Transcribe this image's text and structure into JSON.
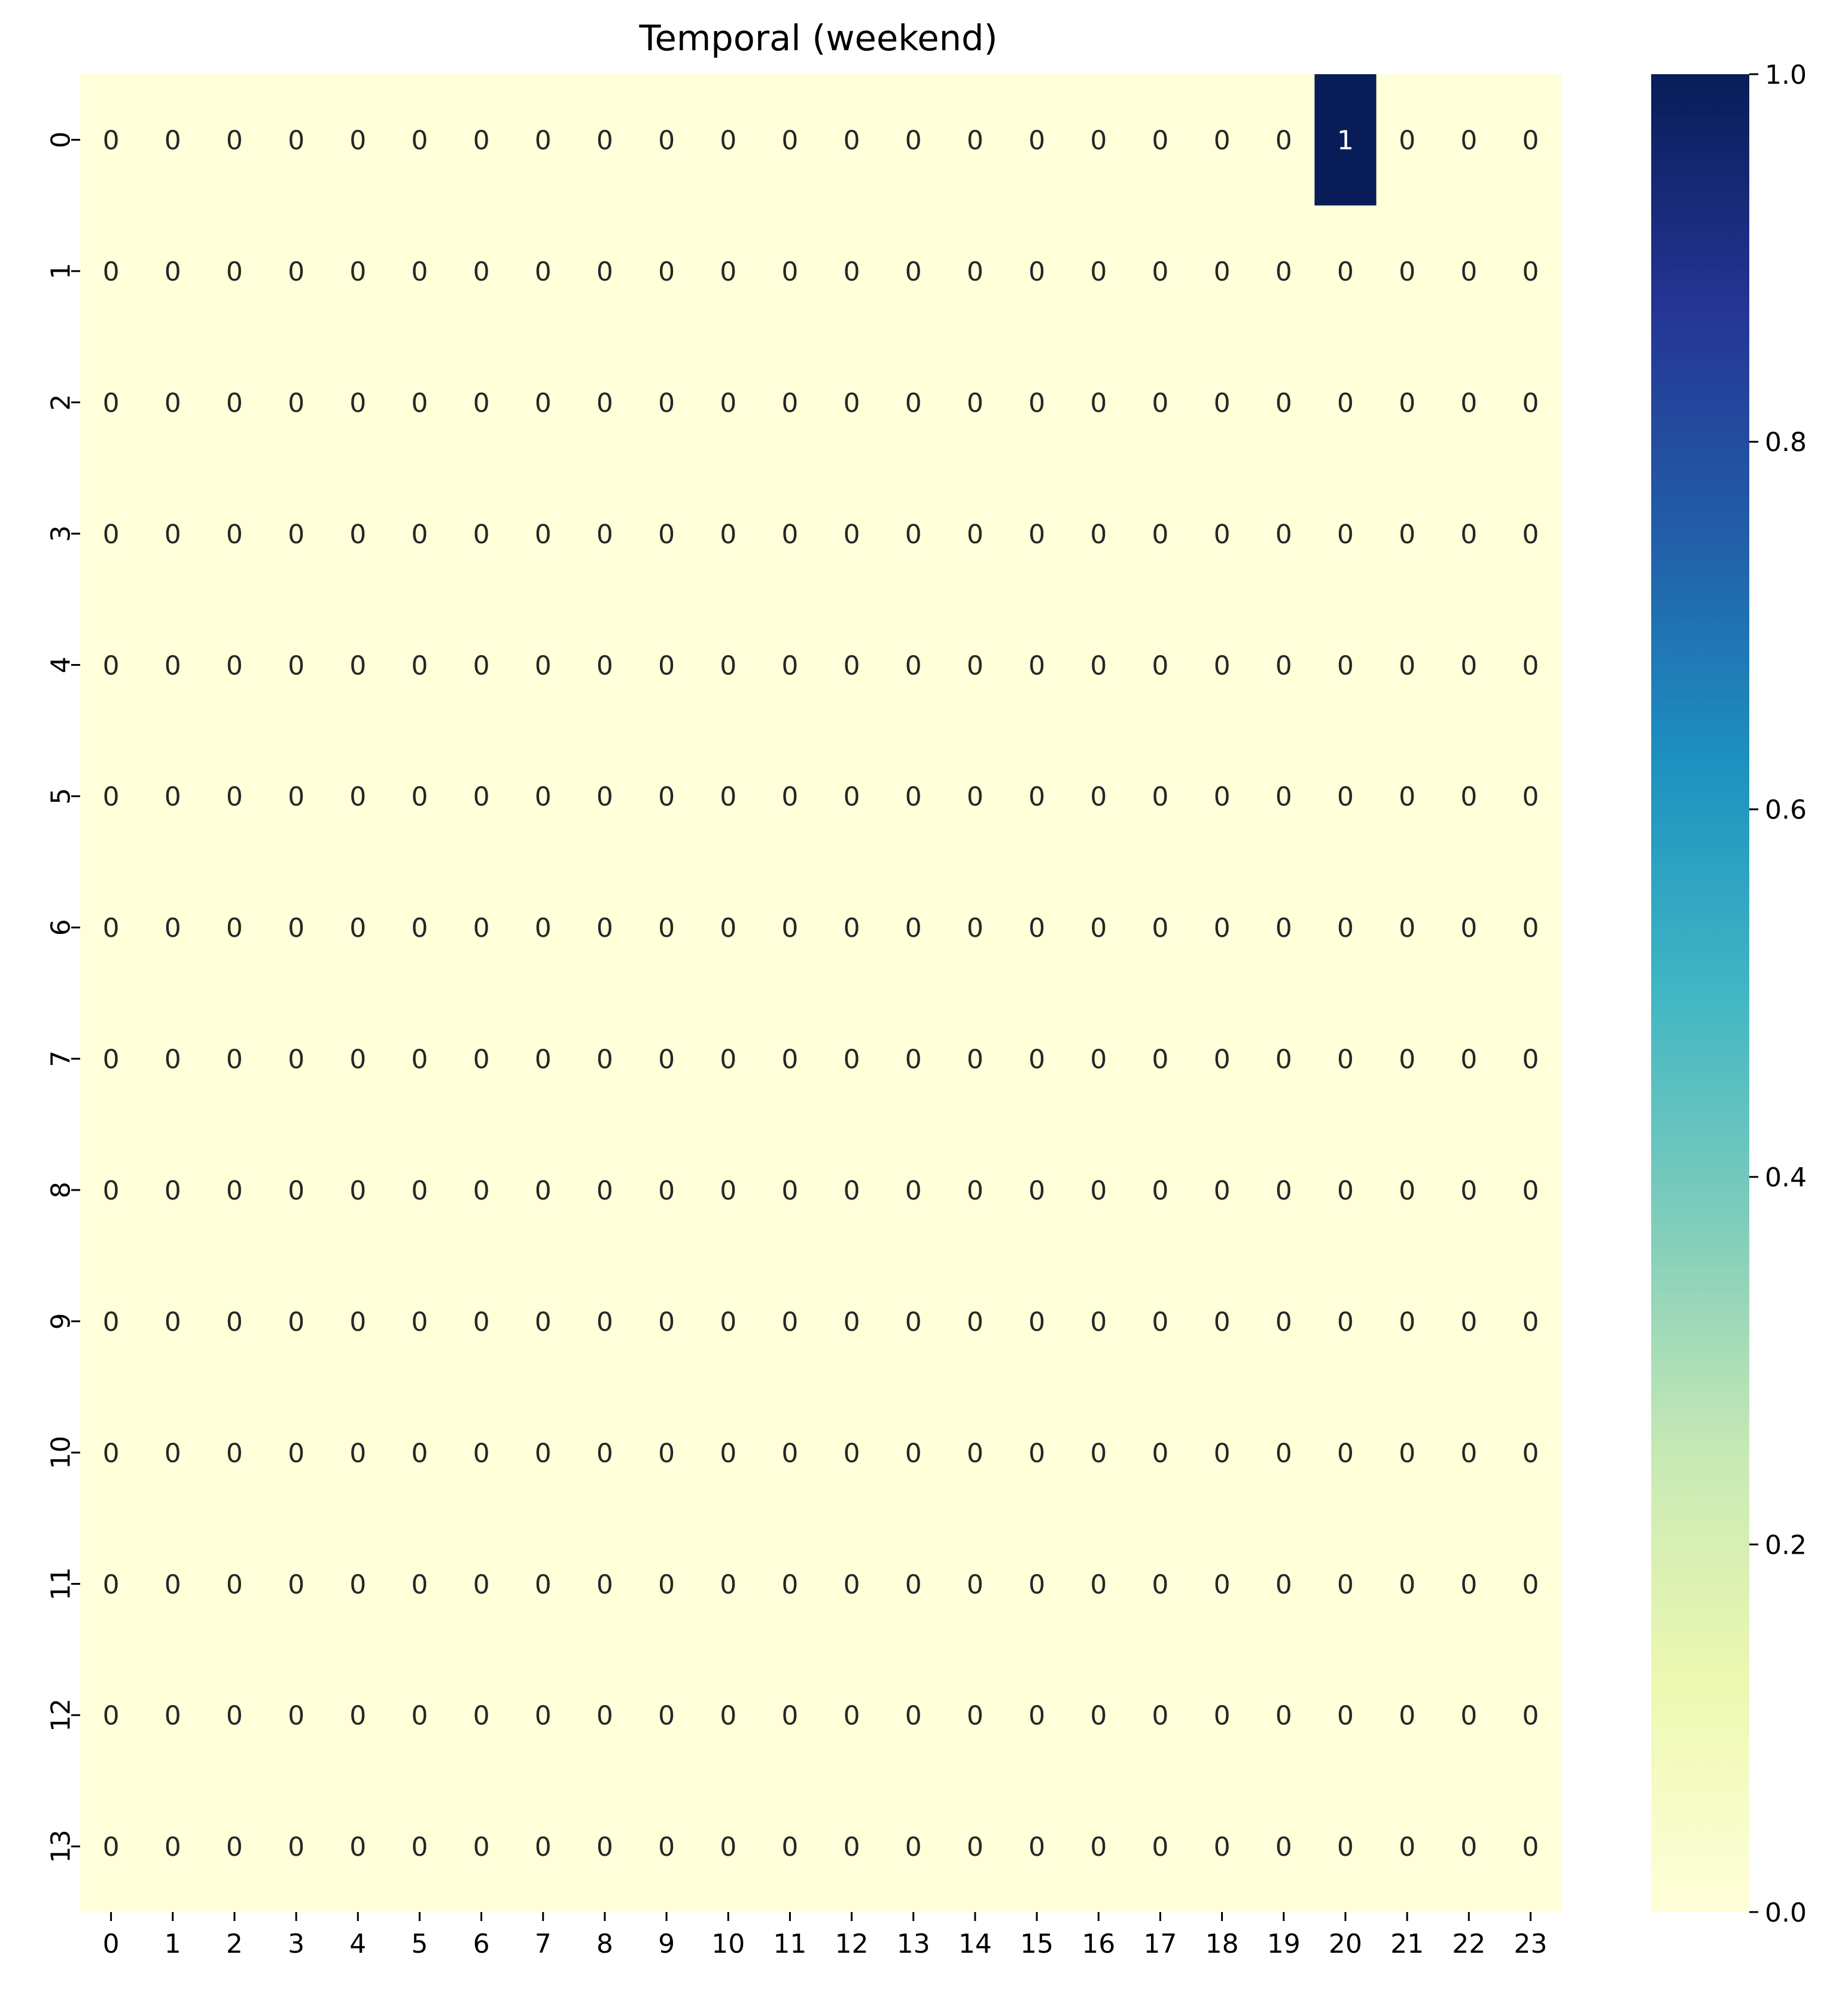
{
  "chart_data": {
    "type": "heatmap",
    "title": "Temporal (weekend)",
    "xlabel": "",
    "ylabel": "",
    "x_categories": [
      "0",
      "1",
      "2",
      "3",
      "4",
      "5",
      "6",
      "7",
      "8",
      "9",
      "10",
      "11",
      "12",
      "13",
      "14",
      "15",
      "16",
      "17",
      "18",
      "19",
      "20",
      "21",
      "22",
      "23"
    ],
    "y_categories": [
      "0",
      "1",
      "2",
      "3",
      "4",
      "5",
      "6",
      "7",
      "8",
      "9",
      "10",
      "11",
      "12",
      "13"
    ],
    "values": [
      [
        0,
        0,
        0,
        0,
        0,
        0,
        0,
        0,
        0,
        0,
        0,
        0,
        0,
        0,
        0,
        0,
        0,
        0,
        0,
        0,
        1,
        0,
        0,
        0
      ],
      [
        0,
        0,
        0,
        0,
        0,
        0,
        0,
        0,
        0,
        0,
        0,
        0,
        0,
        0,
        0,
        0,
        0,
        0,
        0,
        0,
        0,
        0,
        0,
        0
      ],
      [
        0,
        0,
        0,
        0,
        0,
        0,
        0,
        0,
        0,
        0,
        0,
        0,
        0,
        0,
        0,
        0,
        0,
        0,
        0,
        0,
        0,
        0,
        0,
        0
      ],
      [
        0,
        0,
        0,
        0,
        0,
        0,
        0,
        0,
        0,
        0,
        0,
        0,
        0,
        0,
        0,
        0,
        0,
        0,
        0,
        0,
        0,
        0,
        0,
        0
      ],
      [
        0,
        0,
        0,
        0,
        0,
        0,
        0,
        0,
        0,
        0,
        0,
        0,
        0,
        0,
        0,
        0,
        0,
        0,
        0,
        0,
        0,
        0,
        0,
        0
      ],
      [
        0,
        0,
        0,
        0,
        0,
        0,
        0,
        0,
        0,
        0,
        0,
        0,
        0,
        0,
        0,
        0,
        0,
        0,
        0,
        0,
        0,
        0,
        0,
        0
      ],
      [
        0,
        0,
        0,
        0,
        0,
        0,
        0,
        0,
        0,
        0,
        0,
        0,
        0,
        0,
        0,
        0,
        0,
        0,
        0,
        0,
        0,
        0,
        0,
        0
      ],
      [
        0,
        0,
        0,
        0,
        0,
        0,
        0,
        0,
        0,
        0,
        0,
        0,
        0,
        0,
        0,
        0,
        0,
        0,
        0,
        0,
        0,
        0,
        0,
        0
      ],
      [
        0,
        0,
        0,
        0,
        0,
        0,
        0,
        0,
        0,
        0,
        0,
        0,
        0,
        0,
        0,
        0,
        0,
        0,
        0,
        0,
        0,
        0,
        0,
        0
      ],
      [
        0,
        0,
        0,
        0,
        0,
        0,
        0,
        0,
        0,
        0,
        0,
        0,
        0,
        0,
        0,
        0,
        0,
        0,
        0,
        0,
        0,
        0,
        0,
        0
      ],
      [
        0,
        0,
        0,
        0,
        0,
        0,
        0,
        0,
        0,
        0,
        0,
        0,
        0,
        0,
        0,
        0,
        0,
        0,
        0,
        0,
        0,
        0,
        0,
        0
      ],
      [
        0,
        0,
        0,
        0,
        0,
        0,
        0,
        0,
        0,
        0,
        0,
        0,
        0,
        0,
        0,
        0,
        0,
        0,
        0,
        0,
        0,
        0,
        0,
        0
      ],
      [
        0,
        0,
        0,
        0,
        0,
        0,
        0,
        0,
        0,
        0,
        0,
        0,
        0,
        0,
        0,
        0,
        0,
        0,
        0,
        0,
        0,
        0,
        0,
        0
      ],
      [
        0,
        0,
        0,
        0,
        0,
        0,
        0,
        0,
        0,
        0,
        0,
        0,
        0,
        0,
        0,
        0,
        0,
        0,
        0,
        0,
        0,
        0,
        0,
        0
      ]
    ],
    "annotate": true,
    "colormap": "YlGnBu",
    "color_low": "#ffffd9",
    "color_high": "#081d58",
    "colorbar": {
      "range": [
        0.0,
        1.0
      ],
      "ticks": [
        0.0,
        0.2,
        0.4,
        0.6,
        0.8,
        1.0
      ],
      "tick_labels": [
        "0.0",
        "0.2",
        "0.4",
        "0.6",
        "0.8",
        "1.0"
      ],
      "stops": [
        "#ffffd9",
        "#edf8b1",
        "#c7e9b4",
        "#7fcdbb",
        "#41b6c4",
        "#1d91c0",
        "#225ea8",
        "#253494",
        "#081d58"
      ]
    },
    "grid": false,
    "legend": "colorbar-right"
  }
}
